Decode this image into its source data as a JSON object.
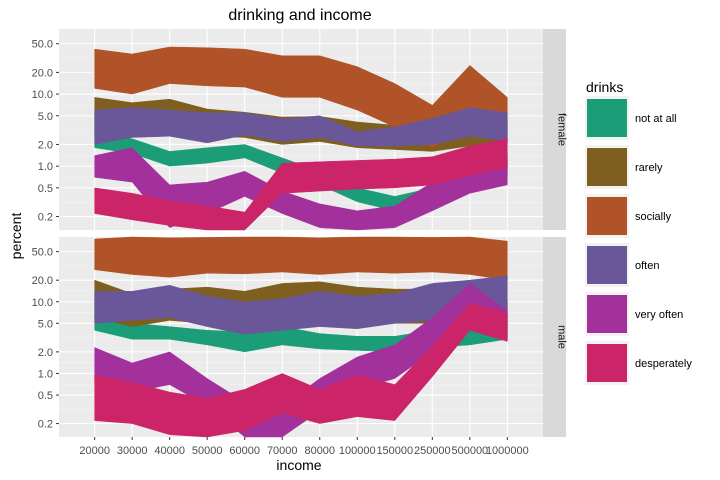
{
  "chart_data": {
    "type": "area",
    "title": "drinking and income",
    "xlabel": "income",
    "ylabel": "percent",
    "y_scale": "log",
    "ylim": [
      0.13,
      80
    ],
    "y_ticks": [
      0.2,
      0.5,
      1.0,
      2.0,
      5.0,
      10.0,
      20.0,
      50.0
    ],
    "y_tick_labels": [
      "0.2",
      "0.5",
      "1.0",
      "2.0",
      "5.0",
      "10.0",
      "20.0",
      "50.0"
    ],
    "categories": [
      "20000",
      "30000",
      "40000",
      "50000",
      "60000",
      "70000",
      "80000",
      "100000",
      "150000",
      "250000",
      "500000",
      "1000000"
    ],
    "legend": {
      "title": "drinks",
      "position": "right"
    },
    "panels": [
      {
        "label": "female",
        "series": [
          {
            "name": "not at all",
            "color": "#1B9E77",
            "lower": [
              1.8,
              1.5,
              1.0,
              1.1,
              1.3,
              0.8,
              0.55,
              0.32,
              0.24,
              0.3,
              0.55,
              0.75
            ],
            "upper": [
              3.0,
              2.4,
              1.6,
              1.8,
              2.0,
              1.3,
              0.85,
              0.5,
              0.38,
              0.5,
              0.85,
              1.1
            ]
          },
          {
            "name": "rarely",
            "color": "#7F5F1F",
            "lower": [
              2.8,
              3.0,
              3.1,
              2.6,
              2.5,
              2.0,
              2.2,
              1.8,
              1.7,
              1.6,
              1.9,
              2.1
            ],
            "upper": [
              9.0,
              7.6,
              8.5,
              6.2,
              5.6,
              4.8,
              4.9,
              4.1,
              3.7,
              3.5,
              3.9,
              4.5
            ]
          },
          {
            "name": "socially",
            "color": "#B05328",
            "lower": [
              12.0,
              10.0,
              14.0,
              13.0,
              12.5,
              9.0,
              9.0,
              6.0,
              3.5,
              1.8,
              3.5,
              5.0
            ],
            "upper": [
              42.0,
              36.0,
              45.0,
              44.0,
              42.0,
              34.0,
              34.0,
              24.0,
              14.0,
              7.0,
              25.0,
              9.0
            ]
          },
          {
            "name": "often",
            "color": "#6A5799",
            "lower": [
              2.0,
              2.5,
              2.6,
              2.1,
              2.7,
              2.2,
              2.5,
              1.9,
              1.9,
              2.0,
              2.6,
              2.2
            ],
            "upper": [
              6.0,
              6.5,
              6.0,
              5.5,
              5.5,
              4.5,
              5.0,
              3.0,
              3.5,
              4.6,
              6.5,
              5.5
            ]
          },
          {
            "name": "very often",
            "color": "#A3319B",
            "lower": [
              0.7,
              0.6,
              0.14,
              0.22,
              0.38,
              0.22,
              0.14,
              0.11,
              0.14,
              0.24,
              0.42,
              0.55
            ],
            "upper": [
              1.4,
              1.8,
              0.55,
              0.6,
              0.85,
              0.45,
              0.3,
              0.24,
              0.28,
              0.6,
              1.0,
              1.5
            ]
          },
          {
            "name": "desperately",
            "color": "#CB2468",
            "lower": [
              0.22,
              0.18,
              0.15,
              0.13,
              0.11,
              0.42,
              0.45,
              0.48,
              0.5,
              0.55,
              0.75,
              0.95
            ],
            "upper": [
              0.5,
              0.42,
              0.33,
              0.28,
              0.23,
              1.1,
              1.15,
              1.2,
              1.25,
              1.35,
              1.9,
              2.4
            ]
          }
        ]
      },
      {
        "label": "male",
        "series": [
          {
            "name": "not at all",
            "color": "#1B9E77",
            "lower": [
              4.0,
              3.0,
              3.0,
              2.5,
              2.0,
              2.5,
              2.2,
              2.1,
              2.0,
              2.3,
              2.5,
              3.0
            ],
            "upper": [
              6.5,
              5.0,
              4.5,
              4.0,
              3.8,
              4.5,
              3.6,
              3.3,
              3.3,
              4.0,
              4.5,
              5.5
            ]
          },
          {
            "name": "rarely",
            "color": "#7F5F1F",
            "lower": [
              6.0,
              4.5,
              5.5,
              5.0,
              4.5,
              5.0,
              5.5,
              5.2,
              5.0,
              5.0,
              4.5,
              3.2
            ],
            "upper": [
              20.0,
              13.0,
              15.0,
              16.0,
              14.0,
              18.0,
              19.0,
              16.0,
              15.0,
              15.0,
              13.0,
              11.0
            ]
          },
          {
            "name": "socially",
            "color": "#B05328",
            "lower": [
              28.0,
              24.0,
              22.0,
              25.0,
              24.5,
              26.0,
              24.0,
              26.0,
              25.0,
              26.0,
              24.0,
              20.0
            ],
            "upper": [
              75.0,
              80.0,
              78.0,
              79.0,
              80.0,
              80.0,
              78.0,
              80.0,
              80.0,
              79.0,
              80.0,
              70.0
            ]
          },
          {
            "name": "often",
            "color": "#6A5799",
            "lower": [
              5.0,
              5.5,
              6.0,
              4.5,
              3.5,
              4.0,
              4.5,
              4.2,
              5.0,
              5.5,
              6.5,
              6.0
            ],
            "upper": [
              14.0,
              14.0,
              17.0,
              12.0,
              10.0,
              11.0,
              14.0,
              12.0,
              13.0,
              18.0,
              20.0,
              23.0
            ]
          },
          {
            "name": "very often",
            "color": "#A3319B",
            "lower": [
              0.75,
              0.55,
              0.7,
              0.35,
              0.13,
              0.13,
              0.3,
              0.6,
              0.85,
              2.0,
              7.0,
              5.0
            ],
            "upper": [
              2.3,
              1.4,
              2.0,
              0.85,
              0.4,
              0.35,
              0.85,
              1.7,
              2.5,
              6.0,
              18.0,
              7.5
            ]
          },
          {
            "name": "desperately",
            "color": "#CB2468",
            "lower": [
              0.22,
              0.2,
              0.14,
              0.1,
              0.16,
              0.28,
              0.2,
              0.25,
              0.22,
              0.9,
              4.0,
              2.8
            ],
            "upper": [
              0.95,
              0.75,
              0.55,
              0.45,
              0.6,
              1.0,
              0.6,
              0.95,
              0.7,
              2.4,
              9.5,
              7.0
            ]
          }
        ]
      }
    ]
  }
}
